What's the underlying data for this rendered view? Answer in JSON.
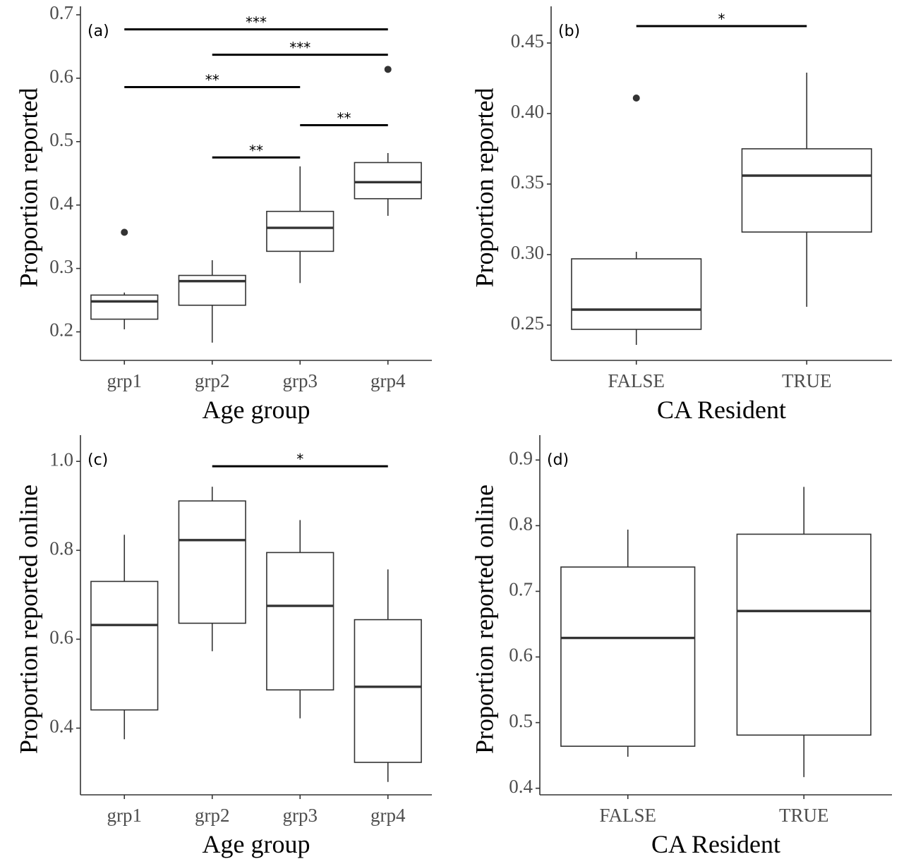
{
  "chart_data": [
    {
      "type": "box",
      "panel_label": "(a)",
      "xlabel": "Age group",
      "ylabel": "Proportion reported",
      "categories": [
        "grp1",
        "grp2",
        "grp3",
        "grp4"
      ],
      "ylim": [
        0.155,
        0.7
      ],
      "yticks": [
        0.2,
        0.3,
        0.4,
        0.5,
        0.6,
        0.7
      ],
      "ytick_labels": [
        "0.2",
        "0.3",
        "0.4",
        "0.5",
        "0.6",
        "0.7"
      ],
      "grid": false,
      "boxes": [
        {
          "category": "grp1",
          "whisker_low": 0.204,
          "q1": 0.22,
          "median": 0.248,
          "q3": 0.258,
          "whisker_high": 0.262,
          "outliers": [
            0.357
          ]
        },
        {
          "category": "grp2",
          "whisker_low": 0.183,
          "q1": 0.242,
          "median": 0.28,
          "q3": 0.289,
          "whisker_high": 0.313,
          "outliers": []
        },
        {
          "category": "grp3",
          "whisker_low": 0.277,
          "q1": 0.327,
          "median": 0.364,
          "q3": 0.39,
          "whisker_high": 0.461,
          "outliers": []
        },
        {
          "category": "grp4",
          "whisker_low": 0.383,
          "q1": 0.41,
          "median": 0.436,
          "q3": 0.467,
          "whisker_high": 0.482,
          "outliers": [
            0.614
          ]
        }
      ],
      "significance": [
        {
          "from": "grp1",
          "to": "grp4",
          "y": 0.677,
          "label": "***"
        },
        {
          "from": "grp2",
          "to": "grp4",
          "y": 0.637,
          "label": "***"
        },
        {
          "from": "grp1",
          "to": "grp3",
          "y": 0.586,
          "label": "**"
        },
        {
          "from": "grp3",
          "to": "grp4",
          "y": 0.526,
          "label": "**"
        },
        {
          "from": "grp2",
          "to": "grp3",
          "y": 0.475,
          "label": "**"
        }
      ]
    },
    {
      "type": "box",
      "panel_label": "(b)",
      "xlabel": "CA Resident",
      "ylabel": "Proportion reported",
      "categories": [
        "FALSE",
        "TRUE"
      ],
      "ylim": [
        0.225,
        0.47
      ],
      "yticks": [
        0.25,
        0.3,
        0.35,
        0.4,
        0.45
      ],
      "ytick_labels": [
        "0.25",
        "0.30",
        "0.35",
        "0.40",
        "0.45"
      ],
      "grid": false,
      "boxes": [
        {
          "category": "FALSE",
          "whisker_low": 0.236,
          "q1": 0.247,
          "median": 0.261,
          "q3": 0.297,
          "whisker_high": 0.302,
          "outliers": [
            0.411
          ]
        },
        {
          "category": "TRUE",
          "whisker_low": 0.263,
          "q1": 0.316,
          "median": 0.356,
          "q3": 0.375,
          "whisker_high": 0.429,
          "outliers": []
        }
      ],
      "significance": [
        {
          "from": "FALSE",
          "to": "TRUE",
          "y": 0.462,
          "label": "*"
        }
      ]
    },
    {
      "type": "box",
      "panel_label": "(c)",
      "xlabel": "Age group",
      "ylabel": "Proportion reported online",
      "categories": [
        "grp1",
        "grp2",
        "grp3",
        "grp4"
      ],
      "ylim": [
        0.25,
        1.04
      ],
      "yticks": [
        0.4,
        0.6,
        0.8,
        1.0
      ],
      "ytick_labels": [
        "0.4",
        "0.6",
        "0.8",
        "1.0"
      ],
      "grid": false,
      "boxes": [
        {
          "category": "grp1",
          "whisker_low": 0.375,
          "q1": 0.441,
          "median": 0.632,
          "q3": 0.73,
          "whisker_high": 0.835,
          "outliers": []
        },
        {
          "category": "grp2",
          "whisker_low": 0.573,
          "q1": 0.636,
          "median": 0.823,
          "q3": 0.911,
          "whisker_high": 0.943,
          "outliers": []
        },
        {
          "category": "grp3",
          "whisker_low": 0.422,
          "q1": 0.486,
          "median": 0.675,
          "q3": 0.795,
          "whisker_high": 0.868,
          "outliers": []
        },
        {
          "category": "grp4",
          "whisker_low": 0.279,
          "q1": 0.323,
          "median": 0.493,
          "q3": 0.644,
          "whisker_high": 0.757,
          "outliers": []
        }
      ],
      "significance": [
        {
          "from": "grp2",
          "to": "grp4",
          "y": 0.989,
          "label": "*"
        }
      ]
    },
    {
      "type": "box",
      "panel_label": "(d)",
      "xlabel": "CA Resident",
      "ylabel": "Proportion reported online",
      "categories": [
        "FALSE",
        "TRUE"
      ],
      "ylim": [
        0.39,
        0.925
      ],
      "yticks": [
        0.4,
        0.5,
        0.6,
        0.7,
        0.8,
        0.9
      ],
      "ytick_labels": [
        "0.4",
        "0.5",
        "0.6",
        "0.7",
        "0.8",
        "0.9"
      ],
      "grid": false,
      "boxes": [
        {
          "category": "FALSE",
          "whisker_low": 0.448,
          "q1": 0.464,
          "median": 0.629,
          "q3": 0.737,
          "whisker_high": 0.794,
          "outliers": []
        },
        {
          "category": "TRUE",
          "whisker_low": 0.417,
          "q1": 0.481,
          "median": 0.67,
          "q3": 0.787,
          "whisker_high": 0.859,
          "outliers": []
        }
      ],
      "significance": []
    }
  ]
}
